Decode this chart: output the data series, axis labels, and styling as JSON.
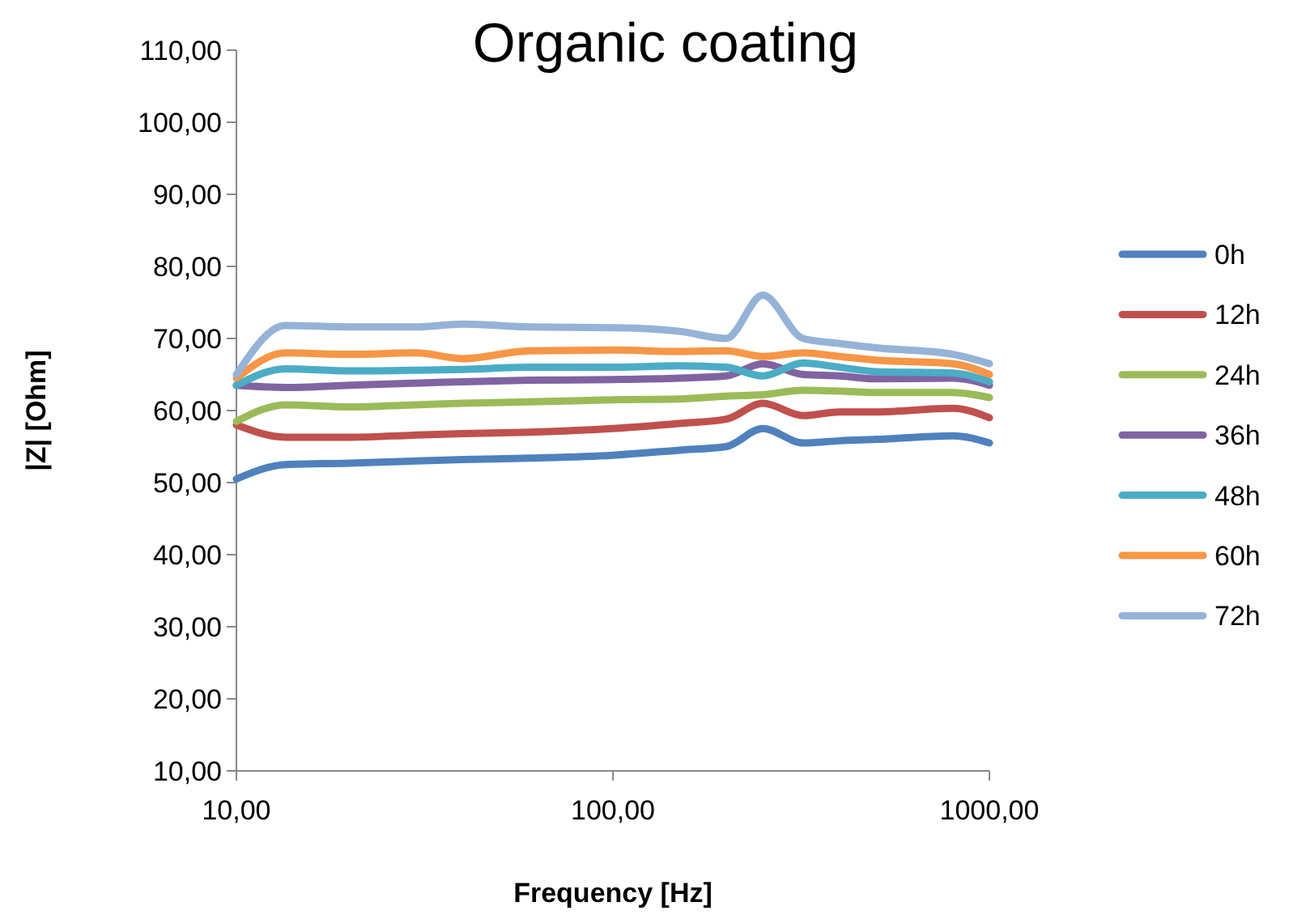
{
  "chart_data": {
    "type": "line",
    "title": "Organic coating",
    "xlabel": "Frequency [Hz]",
    "ylabel": "|Z| [Ohm]",
    "log": "x",
    "x": [
      10,
      13.5,
      20,
      30,
      40,
      60,
      100,
      150,
      200,
      250,
      320,
      400,
      500,
      800,
      1000
    ],
    "xlim": [
      10,
      1000
    ],
    "xticks": [
      {
        "value": 10,
        "label": "10,00"
      },
      {
        "value": 100,
        "label": "100,00"
      },
      {
        "value": 1000,
        "label": "1000,00"
      }
    ],
    "ylim": [
      10,
      110
    ],
    "yticks": [
      {
        "value": 10,
        "label": "10,00"
      },
      {
        "value": 20,
        "label": "20,00"
      },
      {
        "value": 30,
        "label": "30,00"
      },
      {
        "value": 40,
        "label": "40,00"
      },
      {
        "value": 50,
        "label": "50,00"
      },
      {
        "value": 60,
        "label": "60,00"
      },
      {
        "value": 70,
        "label": "70,00"
      },
      {
        "value": 80,
        "label": "80,00"
      },
      {
        "value": 90,
        "label": "90,00"
      },
      {
        "value": 100,
        "label": "100,00"
      },
      {
        "value": 110,
        "label": "110,00"
      }
    ],
    "grid": false,
    "legend": "right",
    "line_style": "solid",
    "series": [
      {
        "name": "0h",
        "color": "#4f81bd",
        "values": [
          50.5,
          52.5,
          52.7,
          53,
          53.2,
          53.4,
          53.8,
          54.5,
          55,
          57.5,
          55.5,
          55.8,
          56,
          56.5,
          55.5
        ]
      },
      {
        "name": "12h",
        "color": "#c0504d",
        "values": [
          58,
          56.3,
          56.3,
          56.6,
          56.8,
          57,
          57.5,
          58.2,
          58.8,
          61,
          59.3,
          59.8,
          59.8,
          60.3,
          59
        ]
      },
      {
        "name": "24h",
        "color": "#9bbb59",
        "values": [
          58.5,
          60.8,
          60.5,
          60.8,
          61,
          61.2,
          61.5,
          61.6,
          62,
          62.2,
          62.8,
          62.7,
          62.5,
          62.5,
          61.8
        ]
      },
      {
        "name": "36h",
        "color": "#8064a2",
        "values": [
          63.5,
          63.2,
          63.5,
          63.8,
          64,
          64.2,
          64.3,
          64.5,
          64.8,
          66.5,
          65,
          64.8,
          64.4,
          64.5,
          63.5
        ]
      },
      {
        "name": "48h",
        "color": "#4bacc6",
        "values": [
          63.5,
          65.8,
          65.5,
          65.6,
          65.7,
          66,
          66,
          66.2,
          66,
          64.8,
          66.6,
          66,
          65.4,
          65.2,
          64
        ]
      },
      {
        "name": "60h",
        "color": "#f79646",
        "values": [
          64.5,
          68,
          67.8,
          68,
          67.2,
          68.3,
          68.4,
          68.2,
          68.3,
          67.5,
          68,
          67.5,
          67,
          66.5,
          65
        ]
      },
      {
        "name": "72h",
        "color": "#95b3d7",
        "values": [
          65,
          71.8,
          71.6,
          71.6,
          72,
          71.6,
          71.5,
          71,
          70,
          76,
          70,
          69.3,
          68.7,
          67.8,
          66.5
        ]
      }
    ]
  }
}
